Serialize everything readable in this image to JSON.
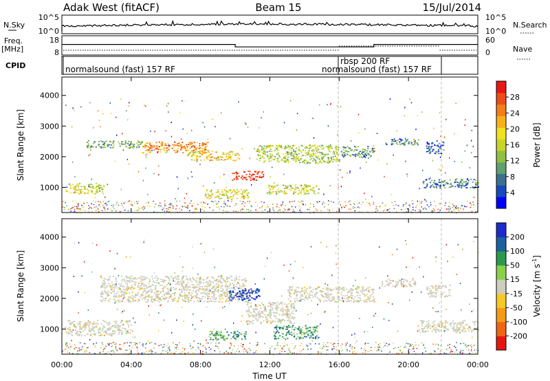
{
  "header": {
    "site": "Adak West (fitACF)",
    "beam": "Beam 15",
    "date": "15/Jul/2014"
  },
  "noise_panel": {
    "left_label": "N.Sky",
    "right_label": "N.Search",
    "left_ticks": [
      "10^5",
      "10^0"
    ],
    "right_ticks": [
      "10^5",
      "10^0"
    ]
  },
  "freq_panel": {
    "left_label_1": "Freq.",
    "left_label_2": "[MHz]",
    "right_label": "Nave",
    "left_ticks": [
      "18",
      "8"
    ],
    "right_ticks": [
      "60",
      "0"
    ],
    "freq_steps": [
      {
        "start": 0.0,
        "end": 10.0,
        "value": 13.5
      },
      {
        "start": 10.0,
        "end": 18.0,
        "value": 12.2
      },
      {
        "start": 18.0,
        "end": 24.0,
        "value": 13.5
      }
    ]
  },
  "cpid_panel": {
    "label": "CPID",
    "modes": [
      {
        "text": "normalsound (fast) 157 RF",
        "start_hour": 0.2
      },
      {
        "text": "rbsp 200 RF",
        "start_hour": 16.0
      },
      {
        "text": "normalsound (fast) 157 RF",
        "start_hour": 16.0
      }
    ]
  },
  "chart_data": [
    {
      "type": "heatmap",
      "title": "Power",
      "xlabel": "",
      "ylabel": "Slant Range [km]",
      "xlim": [
        0,
        24
      ],
      "ylim": [
        180,
        4600
      ],
      "y_ticks": [
        "1000",
        "2000",
        "3000",
        "4000"
      ],
      "colorbar_label": "Power [dB]",
      "colorbar_ticks": [
        "28",
        "24",
        "20",
        "16",
        "12",
        "8",
        "4"
      ],
      "colorbar_colors": [
        "#0000ff",
        "#1848c0",
        "#3a7090",
        "#5fa070",
        "#90c040",
        "#c8d428",
        "#f2e21c",
        "#f8b01a",
        "#f47e18",
        "#ee4c16",
        "#e81612"
      ],
      "scatter_bands": [
        {
          "t0": 0.2,
          "t1": 2.4,
          "r0": 800,
          "r1": 1150,
          "level": 0.5
        },
        {
          "t0": 1.4,
          "t1": 4.6,
          "r0": 2300,
          "r1": 2550,
          "level": 0.35
        },
        {
          "t0": 4.6,
          "t1": 8.5,
          "r0": 2150,
          "r1": 2500,
          "level": 0.75
        },
        {
          "t0": 7.2,
          "t1": 10.2,
          "r0": 1900,
          "r1": 2200,
          "level": 0.6
        },
        {
          "t0": 9.8,
          "t1": 11.6,
          "r0": 1250,
          "r1": 1550,
          "level": 0.95
        },
        {
          "t0": 8.2,
          "t1": 10.8,
          "r0": 650,
          "r1": 950,
          "level": 0.55
        },
        {
          "t0": 11.8,
          "t1": 14.8,
          "r0": 800,
          "r1": 1100,
          "level": 0.5
        },
        {
          "t0": 11.2,
          "t1": 16.0,
          "r0": 1800,
          "r1": 2400,
          "level": 0.45
        },
        {
          "t0": 16.0,
          "t1": 18.0,
          "r0": 2000,
          "r1": 2350,
          "level": 0.3
        },
        {
          "t0": 18.6,
          "t1": 20.6,
          "r0": 2400,
          "r1": 2600,
          "level": 0.25
        },
        {
          "t0": 20.8,
          "t1": 24.0,
          "r0": 1000,
          "r1": 1300,
          "level": 0.25
        },
        {
          "t0": 21.0,
          "t1": 22.0,
          "r0": 2100,
          "r1": 2500,
          "level": 0.2
        }
      ]
    },
    {
      "type": "heatmap",
      "title": "Velocity",
      "xlabel": "Time UT",
      "ylabel": "Slant Range [km]",
      "xlim": [
        0,
        24
      ],
      "ylim": [
        180,
        4600
      ],
      "y_ticks": [
        "1000",
        "2000",
        "3000",
        "4000"
      ],
      "x_ticks": [
        "00:00",
        "04:00",
        "08:00",
        "12:00",
        "16:00",
        "20:00",
        "00:00"
      ],
      "colorbar_label": "Velocity [m s^-1]",
      "colorbar_ticks": [
        "200",
        "100",
        "50",
        "15",
        "-15",
        "-50",
        "-100",
        "-200"
      ],
      "colorbar_colors": [
        "#1c2ccc",
        "#1a62a0",
        "#2a9a4c",
        "#8ad04a",
        "#cdcdc0",
        "#f8c828",
        "#f49a18",
        "#f06414",
        "#e81612"
      ],
      "scatter_bands": [
        {
          "t0": 0.2,
          "t1": 4.0,
          "r0": 800,
          "r1": 1300,
          "level": 0.45
        },
        {
          "t0": 2.2,
          "t1": 10.6,
          "r0": 1900,
          "r1": 2750,
          "level": 0.45
        },
        {
          "t0": 9.6,
          "t1": 11.4,
          "r0": 1950,
          "r1": 2350,
          "level": 0.95
        },
        {
          "t0": 10.6,
          "t1": 13.4,
          "r0": 1200,
          "r1": 1900,
          "level": 0.45
        },
        {
          "t0": 8.4,
          "t1": 10.6,
          "r0": 650,
          "r1": 950,
          "level": 0.7
        },
        {
          "t0": 12.2,
          "t1": 14.8,
          "r0": 700,
          "r1": 1150,
          "level": 0.7
        },
        {
          "t0": 13.0,
          "t1": 18.0,
          "r0": 1900,
          "r1": 2400,
          "level": 0.45
        },
        {
          "t0": 18.4,
          "t1": 20.4,
          "r0": 2400,
          "r1": 2650,
          "level": 0.45
        },
        {
          "t0": 20.6,
          "t1": 24.0,
          "r0": 900,
          "r1": 1300,
          "level": 0.45
        },
        {
          "t0": 21.0,
          "t1": 22.4,
          "r0": 2050,
          "r1": 2450,
          "level": 0.45
        }
      ]
    }
  ]
}
